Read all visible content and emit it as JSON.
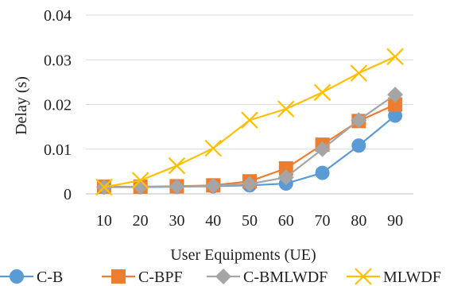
{
  "chart_data": {
    "type": "line",
    "title": "",
    "xlabel": "User Equipments (UE)",
    "ylabel": "Delay (s)",
    "categories": [
      "10",
      "20",
      "30",
      "40",
      "50",
      "60",
      "70",
      "80",
      "90"
    ],
    "ylim": [
      0,
      0.04
    ],
    "yticks": [
      "0",
      "0.01",
      "0.02",
      "0.03",
      "0.04"
    ],
    "grid": true,
    "legend_position": "bottom",
    "series": [
      {
        "name": "C-B",
        "color": "#5b9bd5",
        "marker": "circle",
        "values": [
          0.0015,
          0.0015,
          0.0016,
          0.0017,
          0.0019,
          0.0023,
          0.0047,
          0.0108,
          0.0175
        ]
      },
      {
        "name": "C-BPF",
        "color": "#ed7d31",
        "marker": "square",
        "values": [
          0.0016,
          0.0016,
          0.0017,
          0.0019,
          0.0028,
          0.0057,
          0.011,
          0.0163,
          0.02
        ]
      },
      {
        "name": "C-BMLWDF",
        "color": "#a5a5a5",
        "marker": "diamond",
        "values": [
          0.0015,
          0.0016,
          0.0016,
          0.0018,
          0.0022,
          0.0037,
          0.01,
          0.0165,
          0.0222
        ]
      },
      {
        "name": "MLWDF",
        "color": "#ffc000",
        "marker": "x",
        "values": [
          0.0015,
          0.003,
          0.0063,
          0.0102,
          0.0165,
          0.019,
          0.0227,
          0.027,
          0.0307
        ]
      }
    ]
  }
}
